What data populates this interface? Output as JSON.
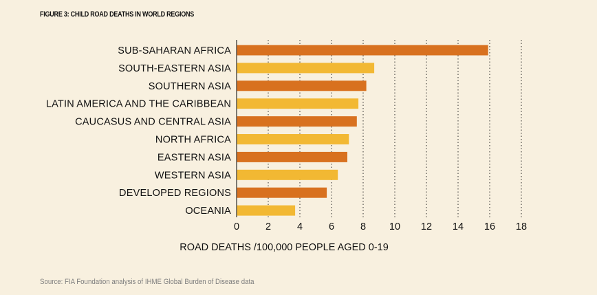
{
  "figure": {
    "title": "FIGURE 3: CHILD ROAD DEATHS IN WORLD REGIONS",
    "source": "Source: FIA Foundation analysis of IHME Global Burden of Disease data"
  },
  "colors": {
    "background": "#f8f0df",
    "bar_dark": "#d8711f",
    "bar_light": "#f2b833",
    "grid": "#2b2b2b"
  },
  "chart_data": {
    "type": "bar",
    "orientation": "horizontal",
    "categories": [
      "SUB-SAHARAN AFRICA",
      "SOUTH-EASTERN ASIA",
      "SOUTHERN ASIA",
      "LATIN AMERICA AND THE CARIBBEAN",
      "CAUCASUS AND CENTRAL ASIA",
      "NORTH AFRICA",
      "EASTERN ASIA",
      "WESTERN ASIA",
      "DEVELOPED REGIONS",
      "OCEANIA"
    ],
    "values": [
      15.9,
      8.7,
      8.2,
      7.7,
      7.6,
      7.1,
      7.0,
      6.4,
      5.7,
      3.7
    ],
    "bar_colors": [
      "#d8711f",
      "#f2b833",
      "#d8711f",
      "#f2b833",
      "#d8711f",
      "#f2b833",
      "#d8711f",
      "#f2b833",
      "#d8711f",
      "#f2b833"
    ],
    "xlabel": "ROAD DEATHS /100,000 PEOPLE AGED 0-19",
    "ylabel": "",
    "xlim": [
      0,
      18
    ],
    "xticks": [
      0,
      2,
      4,
      6,
      8,
      10,
      12,
      14,
      16,
      18
    ],
    "grid": "vertical dotted",
    "legend": "none"
  }
}
